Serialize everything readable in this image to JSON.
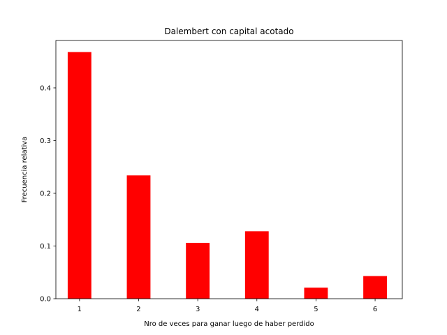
{
  "chart_data": {
    "type": "bar",
    "title": "Dalembert con capital acotado",
    "xlabel": "Nro de veces para ganar luego de haber perdido",
    "ylabel": "Frecuencia relativa",
    "categories": [
      "1",
      "2",
      "3",
      "4",
      "5",
      "6"
    ],
    "x": [
      1,
      2,
      3,
      4,
      5,
      6
    ],
    "values": [
      0.468,
      0.234,
      0.106,
      0.128,
      0.021,
      0.043
    ],
    "bar_color": "#ff0000",
    "xlim": [
      0.6,
      6.46
    ],
    "ylim": [
      0,
      0.49
    ],
    "yticks": [
      0.0,
      0.1,
      0.2,
      0.3,
      0.4
    ],
    "ytick_labels": [
      "0.0",
      "0.1",
      "0.2",
      "0.3",
      "0.4"
    ],
    "grid": false,
    "legend": "none"
  }
}
